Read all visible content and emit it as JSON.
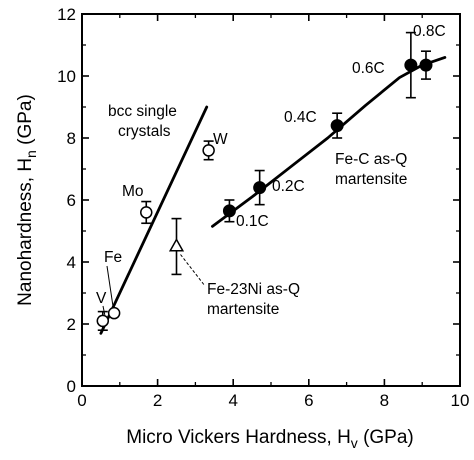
{
  "chart_data": {
    "type": "scatter",
    "title": "",
    "xlabel": "Micro Vickers Hardness, H",
    "xlabel_sub": "v",
    "xlabel_unit": " (GPa)",
    "ylabel": "Nanohardness, H",
    "ylabel_sub": "n",
    "ylabel_unit": " (GPa)",
    "xlim": [
      0,
      10
    ],
    "ylim": [
      0,
      12
    ],
    "xticks": [
      0,
      2,
      4,
      6,
      8,
      10
    ],
    "yticks": [
      0,
      2,
      4,
      6,
      8,
      10,
      12
    ],
    "xtick_labels": [
      "0",
      "2",
      "4",
      "6",
      "8",
      "10"
    ],
    "ytick_labels": [
      "0",
      "2",
      "4",
      "6",
      "8",
      "10",
      "12"
    ],
    "grid": false,
    "series": [
      {
        "marker": "open-circle",
        "points": [
          {
            "label": "V",
            "x": 0.55,
            "y": 2.1,
            "yerr": 0.3
          },
          {
            "label": "Fe",
            "x": 0.85,
            "y": 2.35,
            "yerr": 0
          },
          {
            "label": "Mo",
            "x": 1.7,
            "y": 5.6,
            "yerr": 0.35
          },
          {
            "label": "W",
            "x": 3.35,
            "y": 7.6,
            "yerr": 0.3
          }
        ]
      },
      {
        "marker": "open-triangle",
        "points": [
          {
            "label": "Fe-23Ni as-Q martensite",
            "x": 2.5,
            "y": 4.5,
            "yerr": 0.9
          }
        ]
      },
      {
        "marker": "filled-circle",
        "points": [
          {
            "label": "0.1C",
            "x": 3.9,
            "y": 5.65,
            "yerr": 0.35
          },
          {
            "label": "0.2C",
            "x": 4.7,
            "y": 6.4,
            "yerr": 0.55
          },
          {
            "label": "0.4C",
            "x": 6.75,
            "y": 8.4,
            "yerr": 0.4
          },
          {
            "label": "0.6C",
            "x": 8.7,
            "y": 10.35,
            "yerr": 1.05
          },
          {
            "label": "0.8C",
            "x": 9.1,
            "y": 10.35,
            "yerr": 0.45
          }
        ]
      }
    ],
    "fit_lines": [
      {
        "name": "bcc single crystals",
        "points": [
          [
            0.5,
            1.7
          ],
          [
            3.3,
            9.0
          ]
        ]
      },
      {
        "name": "Fe-C as-Q martensite",
        "points": [
          [
            3.45,
            5.15
          ],
          [
            4.5,
            6.1
          ],
          [
            5.5,
            7.05
          ],
          [
            6.5,
            8.0
          ],
          [
            7.5,
            9.05
          ],
          [
            8.4,
            9.95
          ],
          [
            9.0,
            10.35
          ],
          [
            9.6,
            10.6
          ]
        ]
      }
    ],
    "annotations": {
      "bcc_line1": "bcc single",
      "bcc_line2": "crystals",
      "fec_line1": "Fe-C as-Q",
      "fec_line2": "martensite",
      "feni_line1": "Fe-23Ni as-Q",
      "feni_line2": "martensite",
      "lbl_V": "V",
      "lbl_Fe": "Fe",
      "lbl_Mo": "Mo",
      "lbl_W": "W",
      "lbl_01C": "0.1C",
      "lbl_02C": "0.2C",
      "lbl_04C": "0.4C",
      "lbl_06C": "0.6C",
      "lbl_08C": "0.8C"
    }
  }
}
